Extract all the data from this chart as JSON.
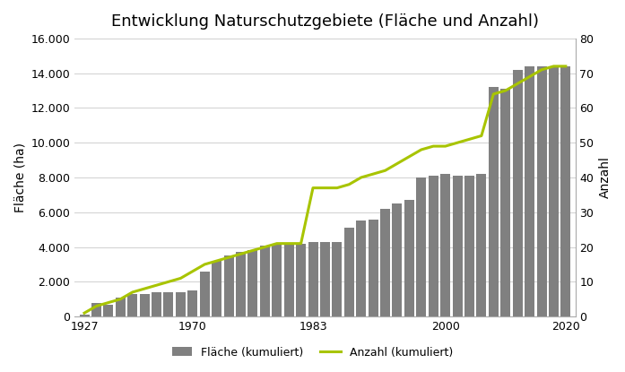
{
  "title": "Entwicklung Naturschutzgebiete (Fläche und Anzahl)",
  "xlabel": "",
  "ylabel_left": "Fläche (ha)",
  "ylabel_right": "Anzahl",
  "bar_color": "#808080",
  "line_color": "#A8C400",
  "background_color": "#ffffff",
  "years": [
    1927,
    1929,
    1932,
    1954,
    1961,
    1963,
    1966,
    1968,
    1969,
    1970,
    1972,
    1974,
    1976,
    1977,
    1978,
    1979,
    1980,
    1981,
    1982,
    1983,
    1984,
    1985,
    1986,
    1987,
    1988,
    1990,
    1992,
    1994,
    1996,
    1998,
    2000,
    2002,
    2004,
    2006,
    2008,
    2010,
    2012,
    2014,
    2016,
    2018,
    2020
  ],
  "flaeche": [
    100,
    800,
    700,
    1100,
    1300,
    1300,
    1400,
    1400,
    1400,
    1500,
    2600,
    3200,
    3500,
    3700,
    3800,
    4100,
    4200,
    4200,
    4200,
    4300,
    4300,
    4300,
    5100,
    5500,
    5600,
    6200,
    6500,
    6700,
    8000,
    8100,
    8200,
    8100,
    8100,
    8200,
    13200,
    13100,
    14200,
    14400,
    14400,
    14400,
    14400
  ],
  "anzahl": [
    1,
    3,
    4,
    5,
    7,
    8,
    9,
    10,
    11,
    13,
    15,
    16,
    17,
    18,
    19,
    20,
    21,
    21,
    21,
    37,
    37,
    37,
    38,
    40,
    41,
    42,
    44,
    46,
    48,
    49,
    49,
    50,
    51,
    52,
    64,
    65,
    67,
    69,
    71,
    72,
    72
  ],
  "ylim_left": [
    0,
    16000
  ],
  "ylim_right": [
    0,
    80
  ],
  "yticks_left": [
    0,
    2000,
    4000,
    6000,
    8000,
    10000,
    12000,
    14000,
    16000
  ],
  "yticks_right": [
    0,
    10,
    20,
    30,
    40,
    50,
    60,
    70,
    80
  ],
  "xtick_labels": [
    "1927",
    "1970",
    "1983",
    "2000",
    "2020"
  ],
  "xtick_positions": [
    1927,
    1970,
    1983,
    2000,
    2020
  ],
  "legend_labels": [
    "Fläche (kumuliert)",
    "Anzahl (kumuliert)"
  ],
  "title_fontsize": 13,
  "axis_fontsize": 10,
  "tick_fontsize": 9,
  "legend_fontsize": 9
}
